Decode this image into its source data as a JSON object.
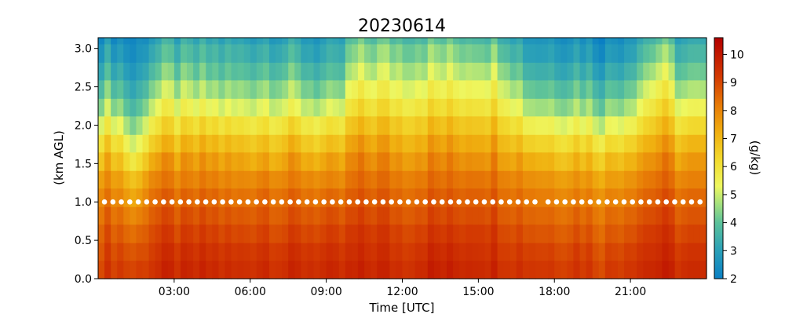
{
  "chart_data": {
    "type": "heatmap",
    "title": "20230614",
    "xlabel": "Time [UTC]",
    "ylabel": "(km AGL)",
    "colorbar_label": "(g/kg)",
    "x_unit": "hours UTC",
    "xlim": [
      0,
      24
    ],
    "ylim": [
      0.0,
      3.14
    ],
    "x_ticks": [
      3,
      6,
      9,
      12,
      15,
      18,
      21
    ],
    "x_tick_labels": [
      "03:00",
      "06:00",
      "09:00",
      "12:00",
      "15:00",
      "18:00",
      "21:00"
    ],
    "y_ticks": [
      0.0,
      0.5,
      1.0,
      1.5,
      2.0,
      2.5,
      3.0
    ],
    "y_tick_labels": [
      "0.0",
      "0.5",
      "1.0",
      "1.5",
      "2.0",
      "2.5",
      "3.0"
    ],
    "color_range": [
      2,
      10.6
    ],
    "colorbar_ticks": [
      2,
      3,
      4,
      5,
      6,
      7,
      8,
      9,
      10
    ],
    "colorbar_tick_labels": [
      "2",
      "3",
      "4",
      "5",
      "6",
      "7",
      "8",
      "9",
      "10"
    ],
    "colormap_stops": [
      {
        "v": 2.0,
        "c": "#0a7fc4"
      },
      {
        "v": 3.0,
        "c": "#2aa0b8"
      },
      {
        "v": 4.0,
        "c": "#5cc29a"
      },
      {
        "v": 4.7,
        "c": "#a8e27c"
      },
      {
        "v": 5.3,
        "c": "#eef760"
      },
      {
        "v": 6.2,
        "c": "#f2dc30"
      },
      {
        "v": 7.2,
        "c": "#f0b010"
      },
      {
        "v": 8.2,
        "c": "#e77a06"
      },
      {
        "v": 9.2,
        "c": "#d33a02"
      },
      {
        "v": 10.6,
        "c": "#b40000"
      }
    ],
    "heights_km": [
      0.0,
      0.24,
      0.47,
      0.71,
      0.94,
      1.18,
      1.41,
      1.65,
      1.88,
      2.12,
      2.35,
      2.59,
      2.82,
      3.06
    ],
    "profiles": [
      {
        "t": 0.0,
        "profile": [
          9.2,
          9.0,
          8.8,
          8.5,
          8.2,
          7.8,
          7.2,
          6.5,
          5.6,
          4.8,
          4.2,
          3.6,
          3.1,
          2.7
        ]
      },
      {
        "t": 0.75,
        "profile": [
          9.3,
          9.1,
          8.8,
          8.5,
          8.1,
          7.7,
          7.1,
          6.4,
          5.5,
          4.7,
          4.1,
          3.5,
          3.0,
          2.6
        ]
      },
      {
        "t": 1.5,
        "profile": [
          9.0,
          8.7,
          8.3,
          7.8,
          7.2,
          6.6,
          5.6,
          4.8,
          4.1,
          3.5,
          3.0,
          2.6,
          2.3,
          2.2
        ]
      },
      {
        "t": 2.0,
        "profile": [
          9.4,
          9.2,
          9.0,
          8.7,
          8.4,
          8.0,
          7.4,
          6.6,
          5.8,
          5.0,
          4.4,
          3.8,
          3.3,
          2.9
        ]
      },
      {
        "t": 2.75,
        "profile": [
          9.6,
          9.4,
          9.1,
          8.8,
          8.5,
          8.1,
          7.6,
          6.9,
          6.2,
          5.5,
          4.8,
          4.2,
          3.7,
          3.3
        ]
      },
      {
        "t": 3.5,
        "profile": [
          9.5,
          9.3,
          9.0,
          8.7,
          8.3,
          7.9,
          7.4,
          6.8,
          6.0,
          5.2,
          4.6,
          4.0,
          3.5,
          3.1
        ]
      },
      {
        "t": 4.5,
        "profile": [
          9.6,
          9.4,
          9.1,
          8.8,
          8.5,
          8.1,
          7.6,
          7.0,
          6.2,
          5.3,
          4.6,
          4.0,
          3.6,
          3.2
        ]
      },
      {
        "t": 5.5,
        "profile": [
          9.4,
          9.2,
          8.9,
          8.6,
          8.2,
          7.8,
          7.3,
          6.7,
          5.9,
          5.0,
          4.4,
          3.8,
          3.4,
          3.0
        ]
      },
      {
        "t": 6.5,
        "profile": [
          9.7,
          9.5,
          9.2,
          8.9,
          8.6,
          8.2,
          7.6,
          7.0,
          6.2,
          5.4,
          4.7,
          4.1,
          3.6,
          3.2
        ]
      },
      {
        "t": 7.5,
        "profile": [
          9.5,
          9.3,
          9.0,
          8.7,
          8.4,
          8.0,
          7.5,
          6.9,
          6.1,
          5.2,
          4.6,
          4.0,
          3.5,
          3.1
        ]
      },
      {
        "t": 8.5,
        "profile": [
          9.6,
          9.4,
          9.1,
          8.8,
          8.4,
          8.0,
          7.4,
          6.7,
          5.9,
          5.0,
          4.3,
          3.7,
          3.2,
          2.9
        ]
      },
      {
        "t": 9.5,
        "profile": [
          9.4,
          9.2,
          8.9,
          8.6,
          8.2,
          7.7,
          7.1,
          6.4,
          5.6,
          4.7,
          4.0,
          3.4,
          3.0,
          2.7
        ]
      },
      {
        "t": 10.0,
        "profile": [
          9.6,
          9.4,
          9.2,
          8.9,
          8.6,
          8.3,
          7.9,
          7.4,
          6.7,
          6.0,
          5.4,
          4.8,
          4.3,
          3.9
        ]
      },
      {
        "t": 11.0,
        "profile": [
          9.7,
          9.5,
          9.3,
          9.0,
          8.7,
          8.4,
          8.0,
          7.5,
          6.9,
          6.2,
          5.6,
          5.0,
          4.5,
          4.0
        ]
      },
      {
        "t": 12.0,
        "profile": [
          9.5,
          9.3,
          9.1,
          8.8,
          8.5,
          8.2,
          7.8,
          7.3,
          6.7,
          6.0,
          5.4,
          4.9,
          4.4,
          3.9
        ]
      },
      {
        "t": 13.0,
        "profile": [
          9.8,
          9.6,
          9.3,
          9.0,
          8.7,
          8.4,
          8.0,
          7.5,
          6.9,
          6.2,
          5.6,
          5.0,
          4.5,
          4.0
        ]
      },
      {
        "t": 14.0,
        "profile": [
          9.7,
          9.5,
          9.2,
          8.9,
          8.6,
          8.3,
          7.9,
          7.4,
          6.8,
          6.1,
          5.5,
          4.9,
          4.4,
          3.9
        ]
      },
      {
        "t": 15.0,
        "profile": [
          9.8,
          9.6,
          9.4,
          9.1,
          8.8,
          8.5,
          8.1,
          7.6,
          7.0,
          6.3,
          5.7,
          5.1,
          4.5,
          4.0
        ]
      },
      {
        "t": 16.0,
        "profile": [
          9.6,
          9.4,
          9.2,
          8.9,
          8.6,
          8.3,
          7.9,
          7.4,
          6.8,
          6.1,
          5.5,
          4.9,
          4.3,
          3.8
        ]
      },
      {
        "t": 17.0,
        "profile": [
          9.4,
          9.2,
          8.9,
          8.6,
          8.3,
          7.9,
          7.4,
          6.6,
          5.7,
          4.8,
          4.2,
          3.6,
          3.1,
          2.8
        ]
      },
      {
        "t": 18.0,
        "profile": [
          9.3,
          9.1,
          8.8,
          8.5,
          8.1,
          7.7,
          7.1,
          6.4,
          5.5,
          4.7,
          4.1,
          3.5,
          3.1,
          2.8
        ]
      },
      {
        "t": 19.0,
        "profile": [
          9.4,
          9.2,
          8.9,
          8.6,
          8.2,
          7.8,
          7.2,
          6.5,
          5.6,
          4.8,
          4.2,
          3.6,
          3.1,
          2.8
        ]
      },
      {
        "t": 20.0,
        "profile": [
          9.1,
          8.9,
          8.6,
          8.3,
          7.9,
          7.4,
          6.8,
          6.0,
          5.1,
          4.3,
          3.7,
          3.1,
          2.6,
          2.3
        ]
      },
      {
        "t": 21.0,
        "profile": [
          9.5,
          9.3,
          9.0,
          8.7,
          8.3,
          7.9,
          7.4,
          6.7,
          5.8,
          5.0,
          4.4,
          3.8,
          3.3,
          3.0
        ]
      },
      {
        "t": 22.25,
        "profile": [
          9.8,
          9.6,
          9.4,
          9.1,
          8.8,
          8.5,
          8.1,
          7.6,
          7.0,
          6.4,
          5.8,
          5.2,
          4.6,
          4.0
        ]
      },
      {
        "t": 23.0,
        "profile": [
          9.5,
          9.3,
          9.0,
          8.7,
          8.4,
          8.0,
          7.5,
          6.9,
          6.1,
          5.3,
          4.6,
          4.0,
          3.5,
          3.1
        ]
      },
      {
        "t": 24.0,
        "profile": [
          9.4,
          9.2,
          8.9,
          8.6,
          8.3,
          7.9,
          7.4,
          6.8,
          6.0,
          5.2,
          4.5,
          3.9,
          3.4,
          3.0
        ]
      }
    ],
    "marker_series": {
      "y_km": 1.0,
      "interval_hours": 0.333,
      "segments": [
        [
          0.25,
          17.25
        ],
        [
          17.75,
          24.0
        ]
      ],
      "color": "#ffffff"
    }
  }
}
